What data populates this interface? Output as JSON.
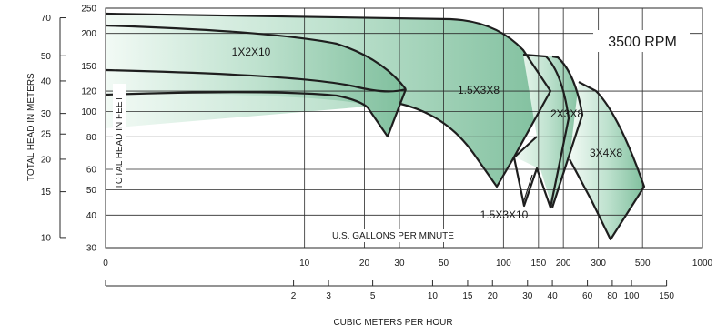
{
  "chart_data": {
    "type": "area",
    "title": "",
    "annotation": "3500 RPM",
    "x_axis": {
      "label": "U.S. GALLONS PER MINUTE",
      "scale": "log",
      "ticks": [
        "0",
        "10",
        "20",
        "30",
        "50",
        "100",
        "150",
        "200",
        "300",
        "500",
        "1000"
      ]
    },
    "x2_axis": {
      "label": "CUBIC METERS PER HOUR",
      "scale": "log",
      "ticks": [
        "2",
        "3",
        "5",
        "10",
        "15",
        "20",
        "30",
        "40",
        "60",
        "80",
        "100",
        "150"
      ]
    },
    "y_axis": {
      "label": "TOTAL HEAD IN FEET",
      "scale": "log",
      "ticks": [
        "30",
        "40",
        "50",
        "60",
        "80",
        "100",
        "120",
        "150",
        "200",
        "250"
      ],
      "range": [
        30,
        250
      ]
    },
    "y2_axis": {
      "label": "TOTAL HEAD IN METERS",
      "ticks": [
        "10",
        "15",
        "20",
        "25",
        "30",
        "40",
        "50",
        "70"
      ]
    },
    "grid": true,
    "series": [
      {
        "name": "1X2X10",
        "x": [
          1,
          10,
          30,
          50,
          65,
          76,
          72,
          62,
          40,
          20,
          1
        ],
        "y": [
          190,
          185,
          170,
          140,
          108,
          120,
          82,
          110,
          120,
          120,
          117
        ]
      },
      {
        "name": "1.5X3X8",
        "x": [
          1,
          50,
          150,
          190,
          230,
          260,
          160,
          110,
          75,
          1
        ],
        "y": [
          240,
          232,
          225,
          200,
          160,
          116,
          53,
          90,
          105,
          142
        ]
      },
      {
        "name": "1.5X3X10",
        "x": [
          225,
          290,
          280,
          225,
          190
        ],
        "y": [
          168,
          98,
          42,
          57,
          63
        ]
      },
      {
        "name": "2X3X8",
        "x": [
          225,
          290,
          320,
          305,
          265,
          230
        ],
        "y": [
          170,
          168,
          122,
          80,
          44,
          60
        ]
      },
      {
        "name": "3X4X8",
        "x": [
          305,
          330,
          480,
          560,
          420,
          300
        ],
        "y": [
          168,
          150,
          90,
          52,
          33,
          65
        ]
      }
    ],
    "colors": {
      "fill_light": "#e8f4ee",
      "fill_dark": "#84c2a2",
      "curve": "#1e1e1e",
      "grid": "#2a2a2a"
    }
  }
}
